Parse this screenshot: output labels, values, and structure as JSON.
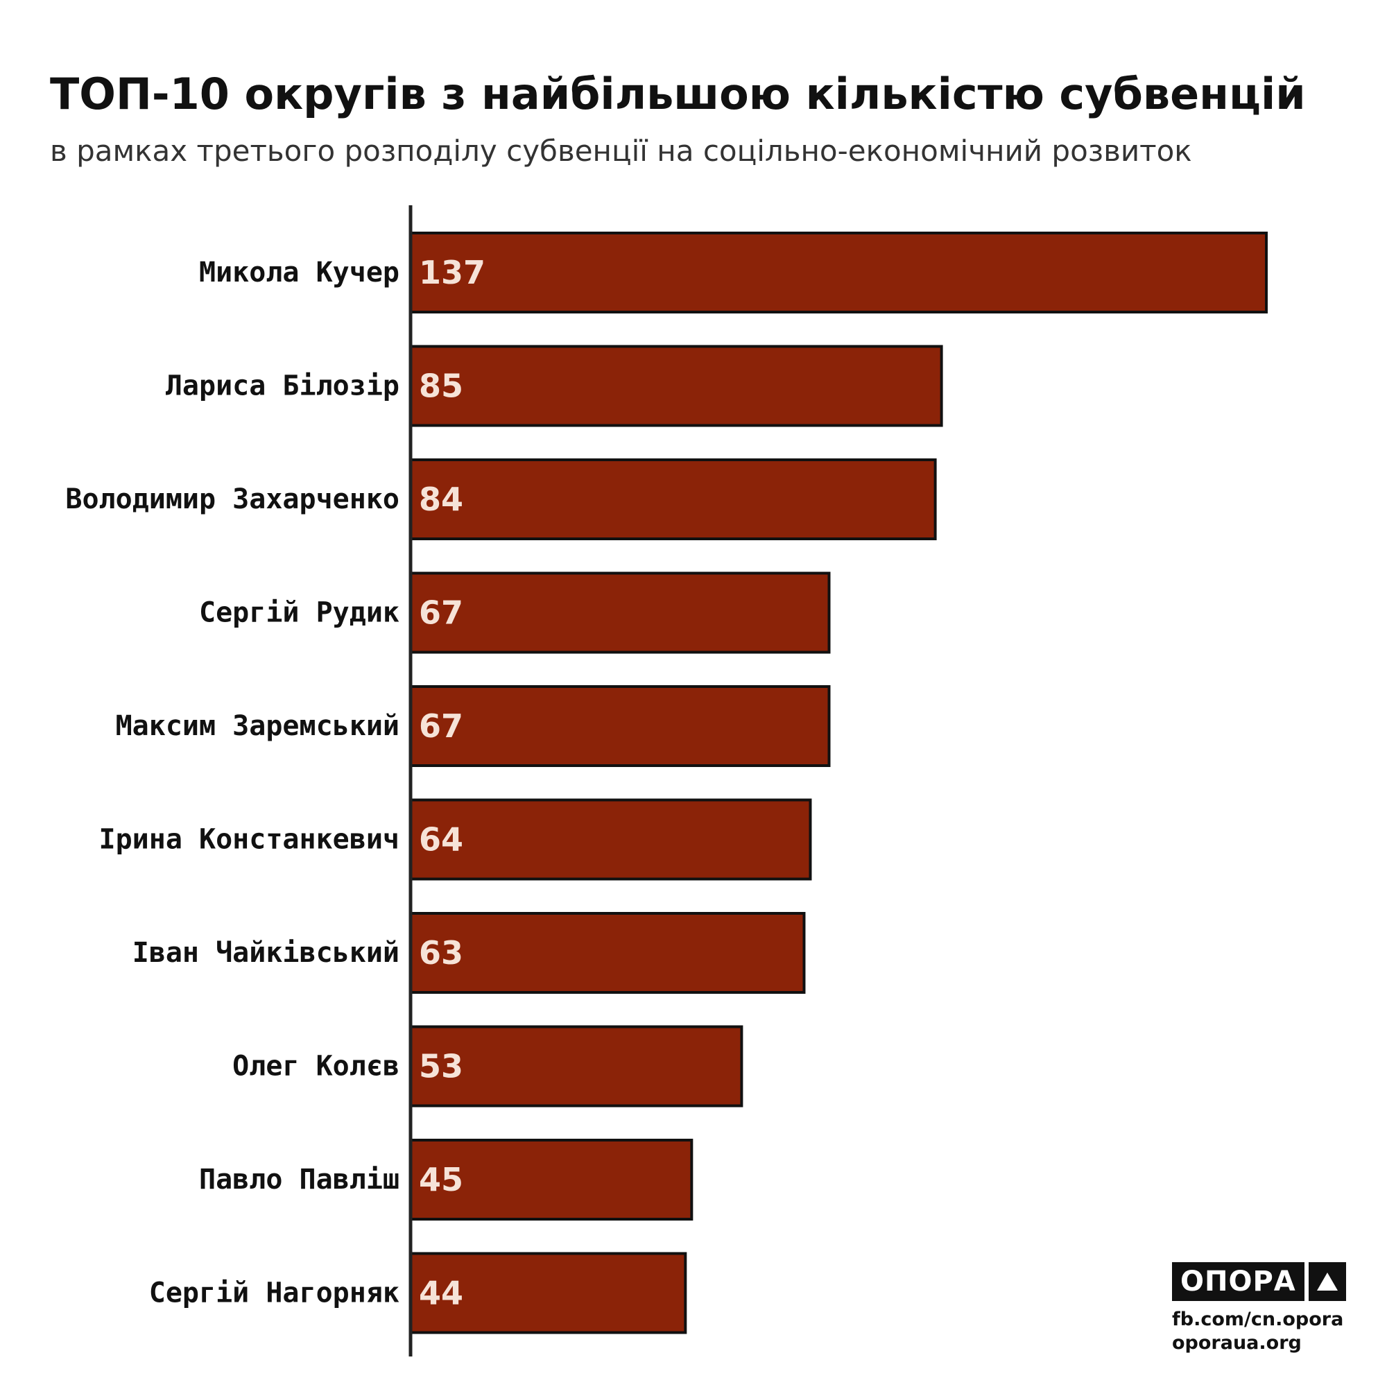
{
  "header": {
    "title": "ТОП-10 округів з найбільшою кількістю субвенцій",
    "subtitle": "в рамках третього розподілу субвенції на соцільно-економічний розвиток"
  },
  "colors": {
    "bar_fill": "#8b2308",
    "bar_stroke": "#111111",
    "axis": "#222222",
    "value_text": "#f6e3d8"
  },
  "chart_data": {
    "type": "bar",
    "orientation": "horizontal",
    "categories": [
      "Микола Кучер",
      "Лариса Білозір",
      "Володимир Захарченко",
      "Сергій Рудик",
      "Максим Заремський",
      "Ірина Констанкевич",
      "Іван Чайківський",
      "Олег Колєв",
      "Павло Павліш",
      "Сергій Нагорняк"
    ],
    "values": [
      137,
      85,
      84,
      67,
      67,
      64,
      63,
      53,
      45,
      44
    ],
    "title": "ТОП-10 округів з найбільшою кількістю субвенцій",
    "subtitle": "в рамках третього розподілу субвенції на соцільно-економічний розвиток",
    "xlim": [
      0,
      137
    ],
    "grid": false,
    "legend": "none"
  },
  "branding": {
    "logo_text": "ОПОРА",
    "logo_icon": "triangle-icon",
    "links": [
      "fb.com/cn.opora",
      "oporaua.org"
    ]
  }
}
